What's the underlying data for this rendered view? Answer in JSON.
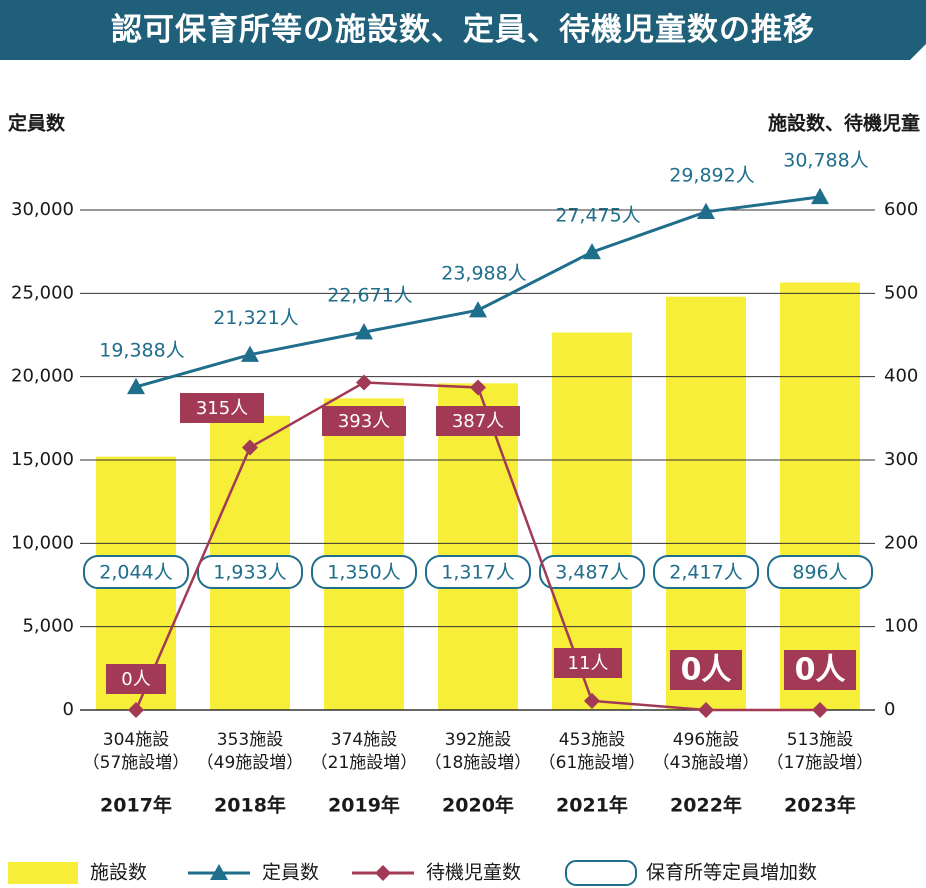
{
  "title": "認可保育所等の施設数、定員、待機児童数の推移",
  "colors": {
    "banner": "#1f5f7a",
    "bar": "#f7ee3a",
    "capacity": "#1f6e8c",
    "waiting": "#a23a55",
    "grid": "#333333"
  },
  "chart_data": {
    "type": "bar+line",
    "title": "認可保育所等の施設数、定員、待機児童数の推移",
    "left_axis_label": "定員数",
    "right_axis_label": "施設数、待機児童",
    "left_ylim": [
      0,
      32000
    ],
    "right_ylim": [
      0,
      640
    ],
    "left_ticks": [
      "0",
      "5,000",
      "10,000",
      "15,000",
      "20,000",
      "25,000",
      "30,000"
    ],
    "left_tick_values": [
      0,
      5000,
      10000,
      15000,
      20000,
      25000,
      30000
    ],
    "right_ticks": [
      "0",
      "100",
      "200",
      "300",
      "400",
      "500",
      "600"
    ],
    "right_tick_values": [
      0,
      100,
      200,
      300,
      400,
      500,
      600
    ],
    "categories": [
      "2017年",
      "2018年",
      "2019年",
      "2020年",
      "2021年",
      "2022年",
      "2023年"
    ],
    "facility_labels": [
      [
        "304施設",
        "（57施設増）"
      ],
      [
        "353施設",
        "（49施設増）"
      ],
      [
        "374施設",
        "（21施設増）"
      ],
      [
        "392施設",
        "（18施設増）"
      ],
      [
        "453施設",
        "（61施設増）"
      ],
      [
        "496施設",
        "（43施設増）"
      ],
      [
        "513施設",
        "（17施設増）"
      ]
    ],
    "series": [
      {
        "name": "施設数",
        "kind": "bar",
        "axis": "right",
        "values": [
          304,
          353,
          374,
          392,
          453,
          496,
          513
        ]
      },
      {
        "name": "定員数",
        "kind": "line",
        "axis": "left",
        "marker": "triangle",
        "values": [
          19388,
          21321,
          22671,
          23988,
          27475,
          29892,
          30788
        ],
        "labels": [
          "19,388人",
          "21,321人",
          "22,671人",
          "23,988人",
          "27,475人",
          "29,892人",
          "30,788人"
        ]
      },
      {
        "name": "待機児童数",
        "kind": "line",
        "axis": "right",
        "marker": "diamond",
        "values": [
          0,
          315,
          393,
          387,
          11,
          0,
          0
        ],
        "labels": [
          "0人",
          "315人",
          "393人",
          "387人",
          "11人",
          "0人",
          "0人"
        ]
      },
      {
        "name": "保育所等定員増加数",
        "kind": "box-label",
        "labels": [
          "2,044人",
          "1,933人",
          "1,350人",
          "1,317人",
          "3,487人",
          "2,417人",
          "896人"
        ]
      }
    ],
    "legend": [
      "施設数",
      "定員数",
      "待機児童数",
      "保育所等定員増加数"
    ],
    "legend_position": "bottom",
    "grid": true
  }
}
